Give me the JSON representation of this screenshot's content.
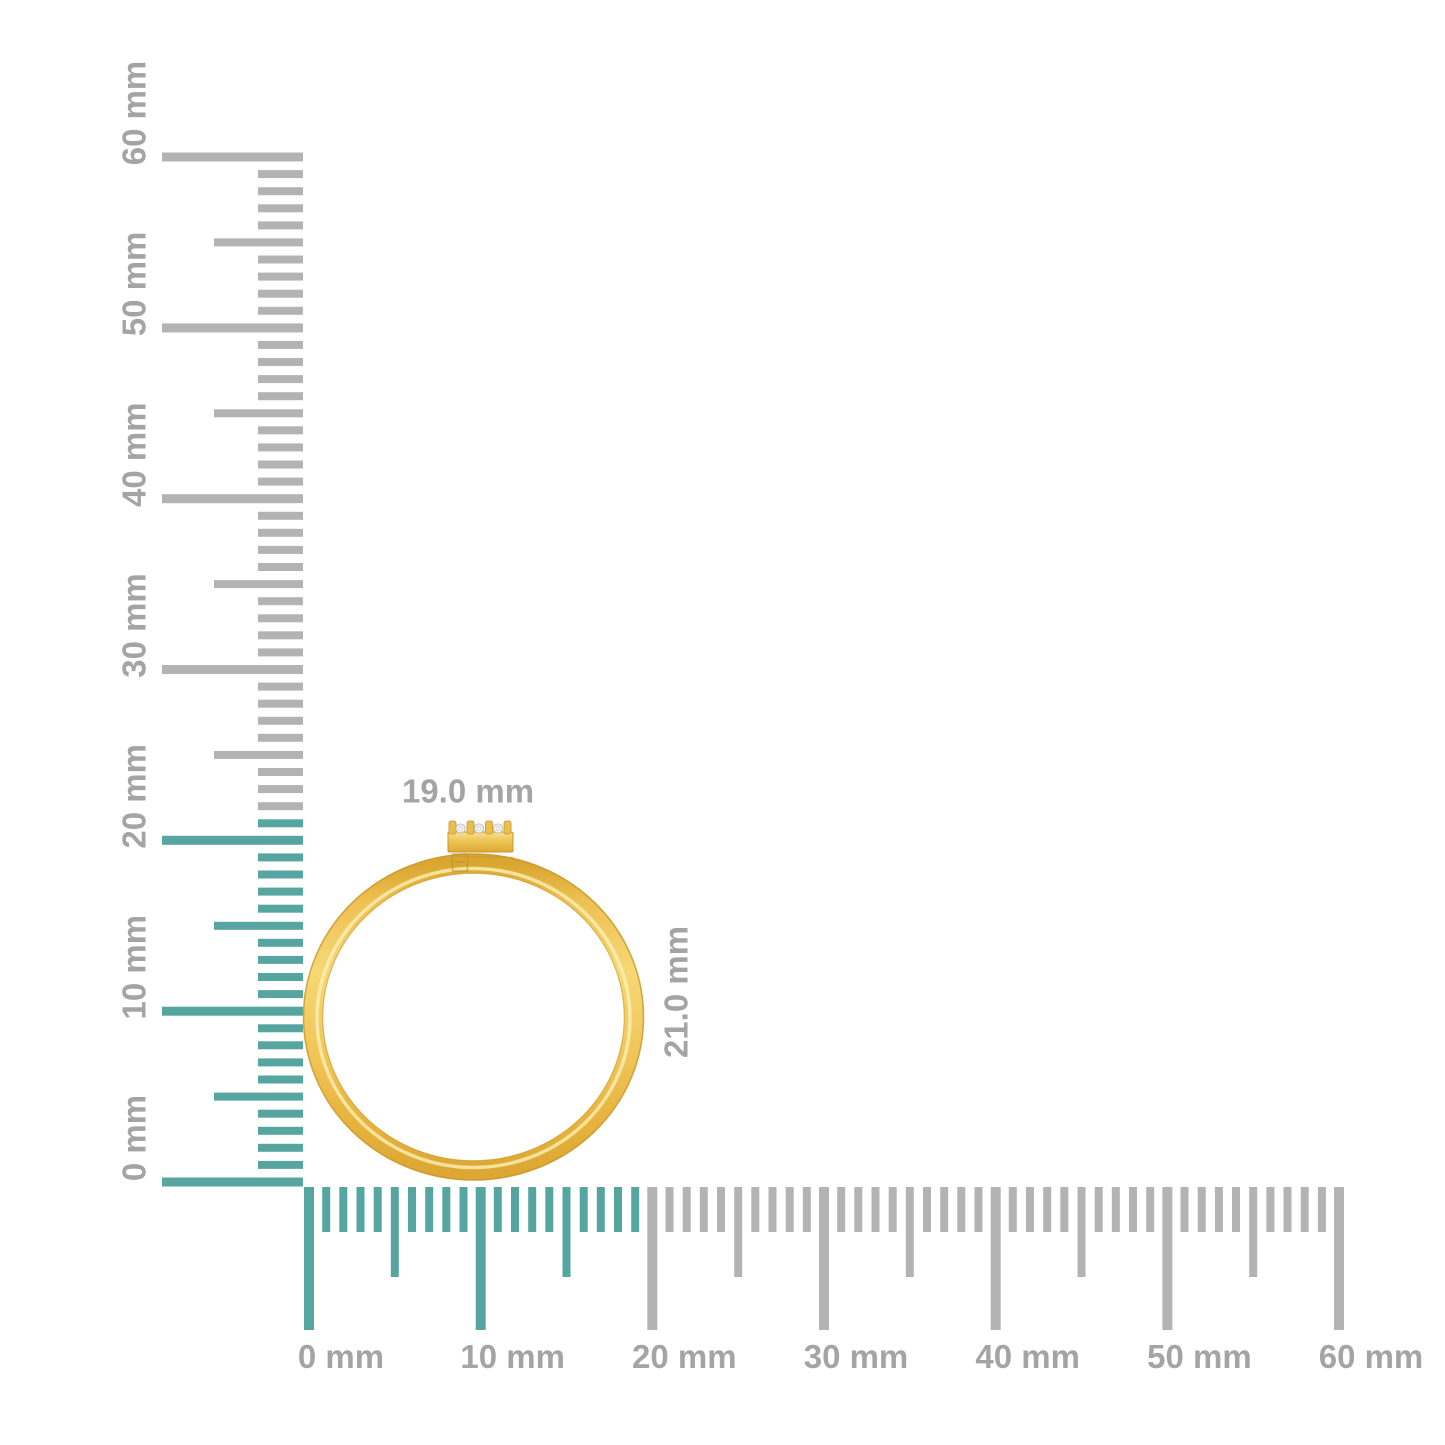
{
  "diagram": {
    "description": "gold-ring-with-diamond-bar-size-diagram",
    "unit": "mm"
  },
  "ring": {
    "width_label": "19.0 mm",
    "height_label": "21.0 mm",
    "width_mm": 19.0,
    "height_mm": 21.0
  },
  "rulers": {
    "vertical": {
      "min_mm": 0,
      "max_mm": 60,
      "minor_step_mm": 1,
      "medium_step_mm": 5,
      "major_step_mm": 10,
      "labels": [
        "0 mm",
        "10 mm",
        "20 mm",
        "30 mm",
        "40 mm",
        "50 mm",
        "60 mm"
      ],
      "label_values": [
        0,
        10,
        20,
        30,
        40,
        50,
        60
      ],
      "highlight_to_mm": 21
    },
    "horizontal": {
      "min_mm": 0,
      "max_mm": 60,
      "minor_step_mm": 1,
      "medium_step_mm": 5,
      "major_step_mm": 10,
      "labels": [
        "0 mm",
        "10 mm",
        "20 mm",
        "30 mm",
        "40 mm",
        "50 mm",
        "60 mm"
      ],
      "label_values": [
        0,
        10,
        20,
        30,
        40,
        50,
        60
      ],
      "highlight_to_mm": 19
    }
  },
  "colors": {
    "highlight_teal": "#57a5a0",
    "tick_gray": "#b3b3b3",
    "label_gray": "#a4a4a4",
    "gold_dark": "#d29d2b",
    "gold_mid": "#f1c75a",
    "gold_light": "#f9e191",
    "gold_rim": "#c9952a",
    "diamond_white": "#f4f4f2",
    "diamond_outline": "#b9b9b4",
    "background": "#ffffff"
  }
}
